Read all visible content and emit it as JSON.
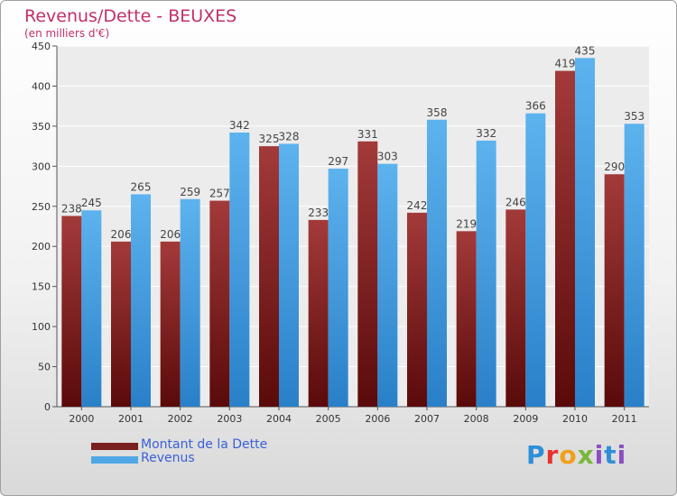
{
  "title": "Revenus/Dette - BEUXES",
  "subtitle": "(en milliers d'€)",
  "legend": {
    "series1": "Montant de la Dette",
    "series2": "Revenus"
  },
  "logo_text": "Proxiti",
  "colors": {
    "dette": "#7a1f1f",
    "revenus": "#4fa7e6",
    "title": "#c0306a",
    "legend_text": "#3a5fd6"
  },
  "chart_data": {
    "type": "bar",
    "categories": [
      "2000",
      "2001",
      "2002",
      "2003",
      "2004",
      "2005",
      "2006",
      "2007",
      "2008",
      "2009",
      "2010",
      "2011"
    ],
    "series": [
      {
        "name": "Montant de la Dette",
        "values": [
          238,
          206,
          206,
          257,
          325,
          233,
          331,
          242,
          219,
          246,
          419,
          290
        ]
      },
      {
        "name": "Revenus",
        "values": [
          245,
          265,
          259,
          342,
          328,
          297,
          303,
          358,
          332,
          366,
          435,
          353
        ]
      }
    ],
    "ylim": [
      0,
      450
    ],
    "yticks": [
      0,
      50,
      100,
      150,
      200,
      250,
      300,
      350,
      400,
      450
    ],
    "grid": true,
    "legend_position": "bottom-left"
  }
}
